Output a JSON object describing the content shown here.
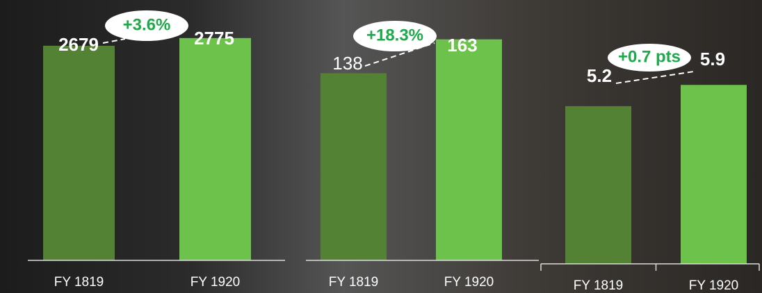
{
  "chart_data": [
    {
      "type": "bar",
      "categories": [
        "FY 1819",
        "FY 1920"
      ],
      "values": [
        2679,
        2775
      ],
      "colors": [
        "#548235",
        "#6cc24a"
      ],
      "annotation": "+3.6%",
      "ylim": [
        0,
        3250
      ]
    },
    {
      "type": "bar",
      "categories": [
        "FY 1819",
        "FY 1920"
      ],
      "values": [
        138,
        163
      ],
      "colors": [
        "#548235",
        "#6cc24a"
      ],
      "annotation": "+18.3%",
      "ylim": [
        0,
        192
      ]
    },
    {
      "type": "bar",
      "categories": [
        "FY 1819",
        "FY 1920"
      ],
      "values": [
        5.2,
        5.9
      ],
      "colors": [
        "#548235",
        "#6cc24a"
      ],
      "annotation": "+0.7 pts",
      "ylim": [
        0,
        8.7
      ]
    }
  ]
}
